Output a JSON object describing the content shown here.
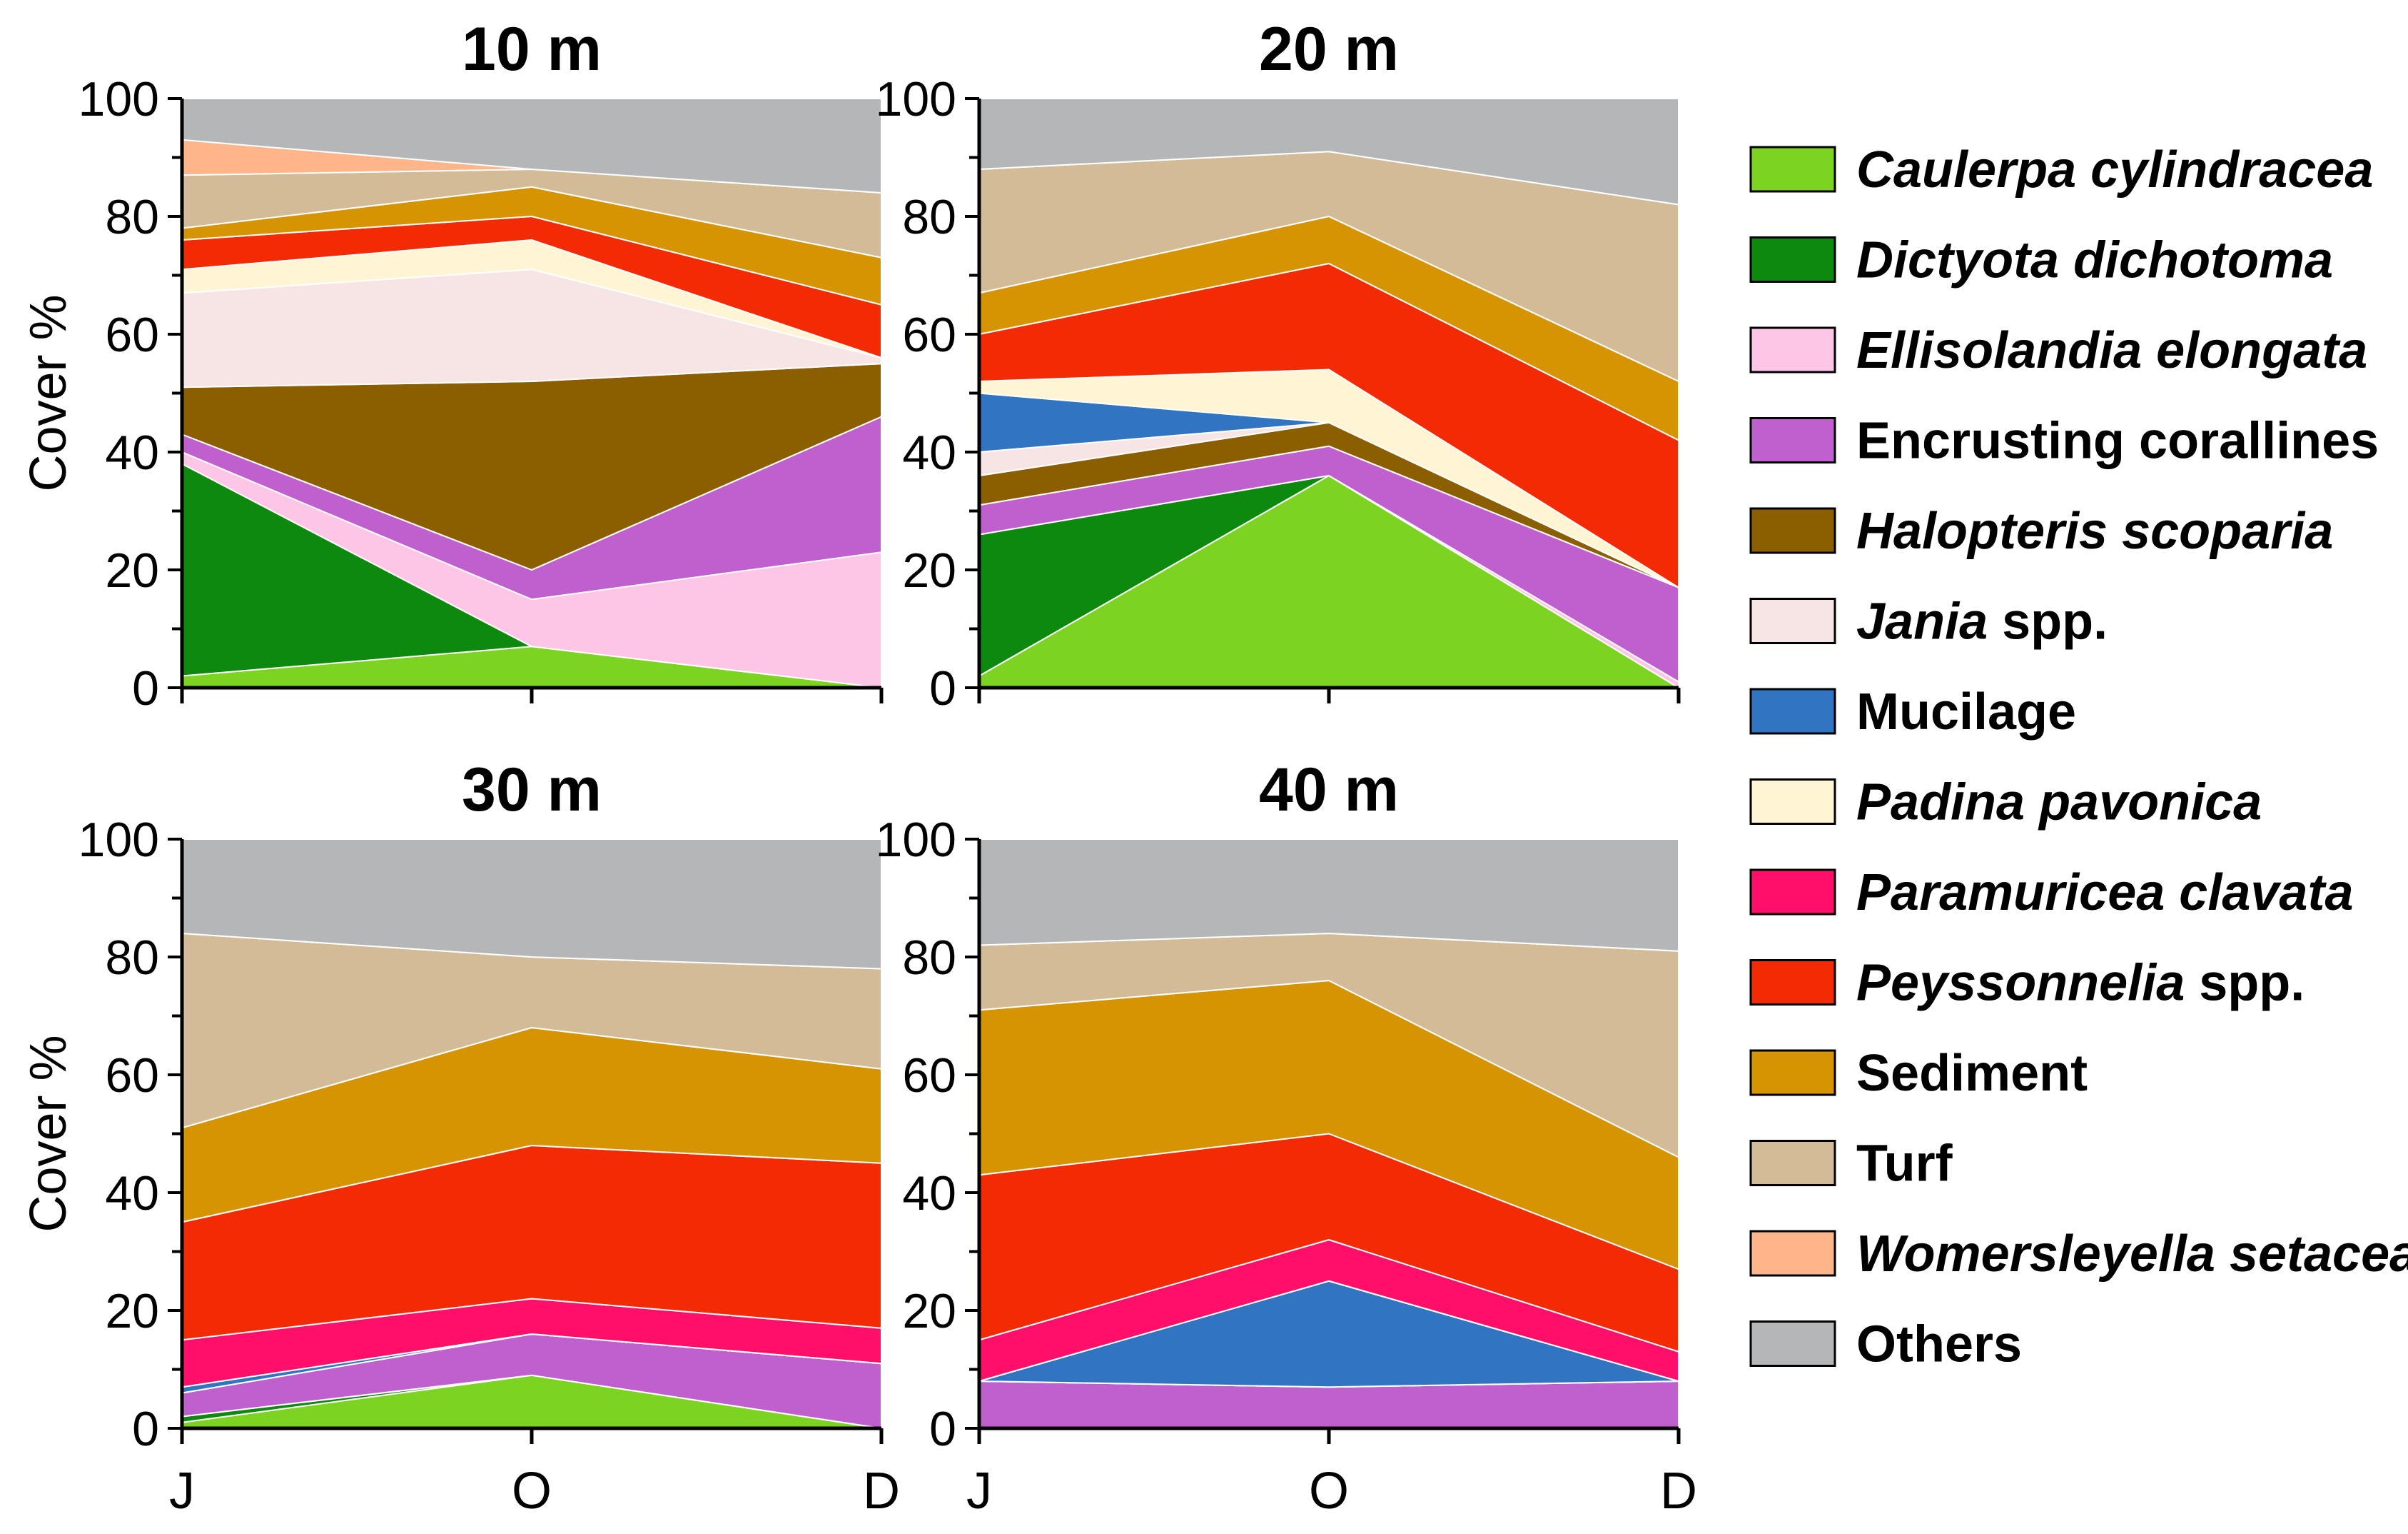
{
  "chart_data": {
    "type": "area",
    "subtype": "stacked-area",
    "panels": [
      {
        "title": "10 m",
        "x": [
          "J",
          "O",
          "D"
        ],
        "ylabel": "Cover %",
        "ylim": [
          0,
          100
        ],
        "yticks": [
          0,
          20,
          40,
          60,
          80,
          100
        ],
        "series": [
          {
            "name": "Caulerpa cylindracea",
            "values": [
              2,
              7,
              0
            ]
          },
          {
            "name": "Dictyota dichotoma",
            "values": [
              36,
              0,
              0
            ]
          },
          {
            "name": "Ellisolandia elongata",
            "values": [
              2,
              8,
              23
            ]
          },
          {
            "name": "Encrusting corallines",
            "values": [
              3,
              5,
              23
            ]
          },
          {
            "name": "Halopteris scoparia",
            "values": [
              8,
              32,
              9
            ]
          },
          {
            "name": "Jania spp.",
            "values": [
              16,
              19,
              1
            ]
          },
          {
            "name": "Mucilage",
            "values": [
              0,
              0,
              0
            ]
          },
          {
            "name": "Padina pavonica",
            "values": [
              4,
              5,
              0
            ]
          },
          {
            "name": "Paramuricea clavata",
            "values": [
              0,
              0,
              0
            ]
          },
          {
            "name": "Peyssonnelia spp.",
            "values": [
              5,
              4,
              9
            ]
          },
          {
            "name": "Sediment",
            "values": [
              2,
              5,
              8
            ]
          },
          {
            "name": "Turf",
            "values": [
              9,
              3,
              11
            ]
          },
          {
            "name": "Womersleyella setacea",
            "values": [
              6,
              0,
              0
            ]
          },
          {
            "name": "Others",
            "values": [
              7,
              12,
              16
            ]
          }
        ]
      },
      {
        "title": "20 m",
        "x": [
          "J",
          "O",
          "D"
        ],
        "ylabel": "",
        "ylim": [
          0,
          100
        ],
        "yticks": [
          0,
          20,
          40,
          60,
          80,
          100
        ],
        "series": [
          {
            "name": "Caulerpa cylindracea",
            "values": [
              2,
              36,
              0
            ]
          },
          {
            "name": "Dictyota dichotoma",
            "values": [
              24,
              0,
              0
            ]
          },
          {
            "name": "Ellisolandia elongata",
            "values": [
              0,
              0,
              1
            ]
          },
          {
            "name": "Encrusting corallines",
            "values": [
              5,
              5,
              16
            ]
          },
          {
            "name": "Halopteris scoparia",
            "values": [
              5,
              4,
              0
            ]
          },
          {
            "name": "Jania spp.",
            "values": [
              4,
              0,
              0
            ]
          },
          {
            "name": "Mucilage",
            "values": [
              10,
              0,
              0
            ]
          },
          {
            "name": "Padina pavonica",
            "values": [
              2,
              9,
              0
            ]
          },
          {
            "name": "Paramuricea clavata",
            "values": [
              0,
              0,
              0
            ]
          },
          {
            "name": "Peyssonnelia spp.",
            "values": [
              8,
              18,
              25
            ]
          },
          {
            "name": "Sediment",
            "values": [
              7,
              8,
              10
            ]
          },
          {
            "name": "Turf",
            "values": [
              21,
              11,
              30
            ]
          },
          {
            "name": "Womersleyella setacea",
            "values": [
              0,
              0,
              0
            ]
          },
          {
            "name": "Others",
            "values": [
              12,
              9,
              18
            ]
          }
        ]
      },
      {
        "title": "30 m",
        "x": [
          "J",
          "O",
          "D"
        ],
        "ylabel": "Cover %",
        "ylim": [
          0,
          100
        ],
        "yticks": [
          0,
          20,
          40,
          60,
          80,
          100
        ],
        "series": [
          {
            "name": "Caulerpa cylindracea",
            "values": [
              1,
              9,
              0
            ]
          },
          {
            "name": "Dictyota dichotoma",
            "values": [
              1,
              0,
              0
            ]
          },
          {
            "name": "Ellisolandia elongata",
            "values": [
              0,
              0,
              0
            ]
          },
          {
            "name": "Encrusting corallines",
            "values": [
              4,
              7,
              11
            ]
          },
          {
            "name": "Halopteris scoparia",
            "values": [
              0,
              0,
              0
            ]
          },
          {
            "name": "Jania spp.",
            "values": [
              0,
              0,
              0
            ]
          },
          {
            "name": "Mucilage",
            "values": [
              1,
              0,
              0
            ]
          },
          {
            "name": "Padina pavonica",
            "values": [
              0,
              0,
              0
            ]
          },
          {
            "name": "Paramuricea clavata",
            "values": [
              8,
              6,
              6
            ]
          },
          {
            "name": "Peyssonnelia spp.",
            "values": [
              20,
              26,
              28
            ]
          },
          {
            "name": "Sediment",
            "values": [
              16,
              20,
              16
            ]
          },
          {
            "name": "Turf",
            "values": [
              33,
              12,
              17
            ]
          },
          {
            "name": "Womersleyella setacea",
            "values": [
              0,
              0,
              0
            ]
          },
          {
            "name": "Others",
            "values": [
              16,
              20,
              22
            ]
          }
        ]
      },
      {
        "title": "40 m",
        "x": [
          "J",
          "O",
          "D"
        ],
        "ylabel": "",
        "ylim": [
          0,
          100
        ],
        "yticks": [
          0,
          20,
          40,
          60,
          80,
          100
        ],
        "series": [
          {
            "name": "Caulerpa cylindracea",
            "values": [
              0,
              0,
              0
            ]
          },
          {
            "name": "Dictyota dichotoma",
            "values": [
              0,
              0,
              0
            ]
          },
          {
            "name": "Ellisolandia elongata",
            "values": [
              0,
              0,
              0
            ]
          },
          {
            "name": "Encrusting corallines",
            "values": [
              8,
              7,
              8
            ]
          },
          {
            "name": "Halopteris scoparia",
            "values": [
              0,
              0,
              0
            ]
          },
          {
            "name": "Jania spp.",
            "values": [
              0,
              0,
              0
            ]
          },
          {
            "name": "Mucilage",
            "values": [
              0,
              18,
              0
            ]
          },
          {
            "name": "Padina pavonica",
            "values": [
              0,
              0,
              0
            ]
          },
          {
            "name": "Paramuricea clavata",
            "values": [
              7,
              7,
              5
            ]
          },
          {
            "name": "Peyssonnelia spp.",
            "values": [
              28,
              18,
              14
            ]
          },
          {
            "name": "Sediment",
            "values": [
              28,
              26,
              19
            ]
          },
          {
            "name": "Turf",
            "values": [
              11,
              8,
              35
            ]
          },
          {
            "name": "Womersleyella setacea",
            "values": [
              0,
              0,
              0
            ]
          },
          {
            "name": "Others",
            "values": [
              18,
              16,
              19
            ]
          }
        ]
      }
    ],
    "legend": {
      "placement": "right",
      "entries": [
        {
          "name": "Caulerpa cylindracea",
          "italic": true,
          "suffix": "",
          "color": "#7cd321"
        },
        {
          "name": "Dictyota dichotoma",
          "italic": true,
          "suffix": "",
          "color": "#0d8a0d"
        },
        {
          "name": "Ellisolandia elongata",
          "italic": true,
          "suffix": "",
          "color": "#fdc5e6"
        },
        {
          "name": "Encrusting corallines",
          "italic": false,
          "suffix": "",
          "color": "#c060cf"
        },
        {
          "name": "Halopteris scoparia",
          "italic": true,
          "suffix": "",
          "color": "#8b5e00"
        },
        {
          "name": "Jania",
          "italic": true,
          "suffix": " spp.",
          "color": "#f7e5e5"
        },
        {
          "name": "Mucilage",
          "italic": false,
          "suffix": "",
          "color": "#3074c2"
        },
        {
          "name": "Padina pavonica",
          "italic": true,
          "suffix": "",
          "color": "#fff5d5"
        },
        {
          "name": "Paramuricea clavata",
          "italic": true,
          "suffix": "",
          "color": "#ff0f6a"
        },
        {
          "name": "Peyssonnelia",
          "italic": true,
          "suffix": " spp.",
          "color": "#f22b05"
        },
        {
          "name": "Sediment",
          "italic": false,
          "suffix": "",
          "color": "#d69302"
        },
        {
          "name": "Turf",
          "italic": false,
          "suffix": "",
          "color": "#d4bb97"
        },
        {
          "name": "Womersleyella setacea",
          "italic": true,
          "suffix": "",
          "color": "#ffb58a"
        },
        {
          "name": "Others",
          "italic": false,
          "suffix": "",
          "color": "#b5b6b8"
        }
      ]
    }
  }
}
